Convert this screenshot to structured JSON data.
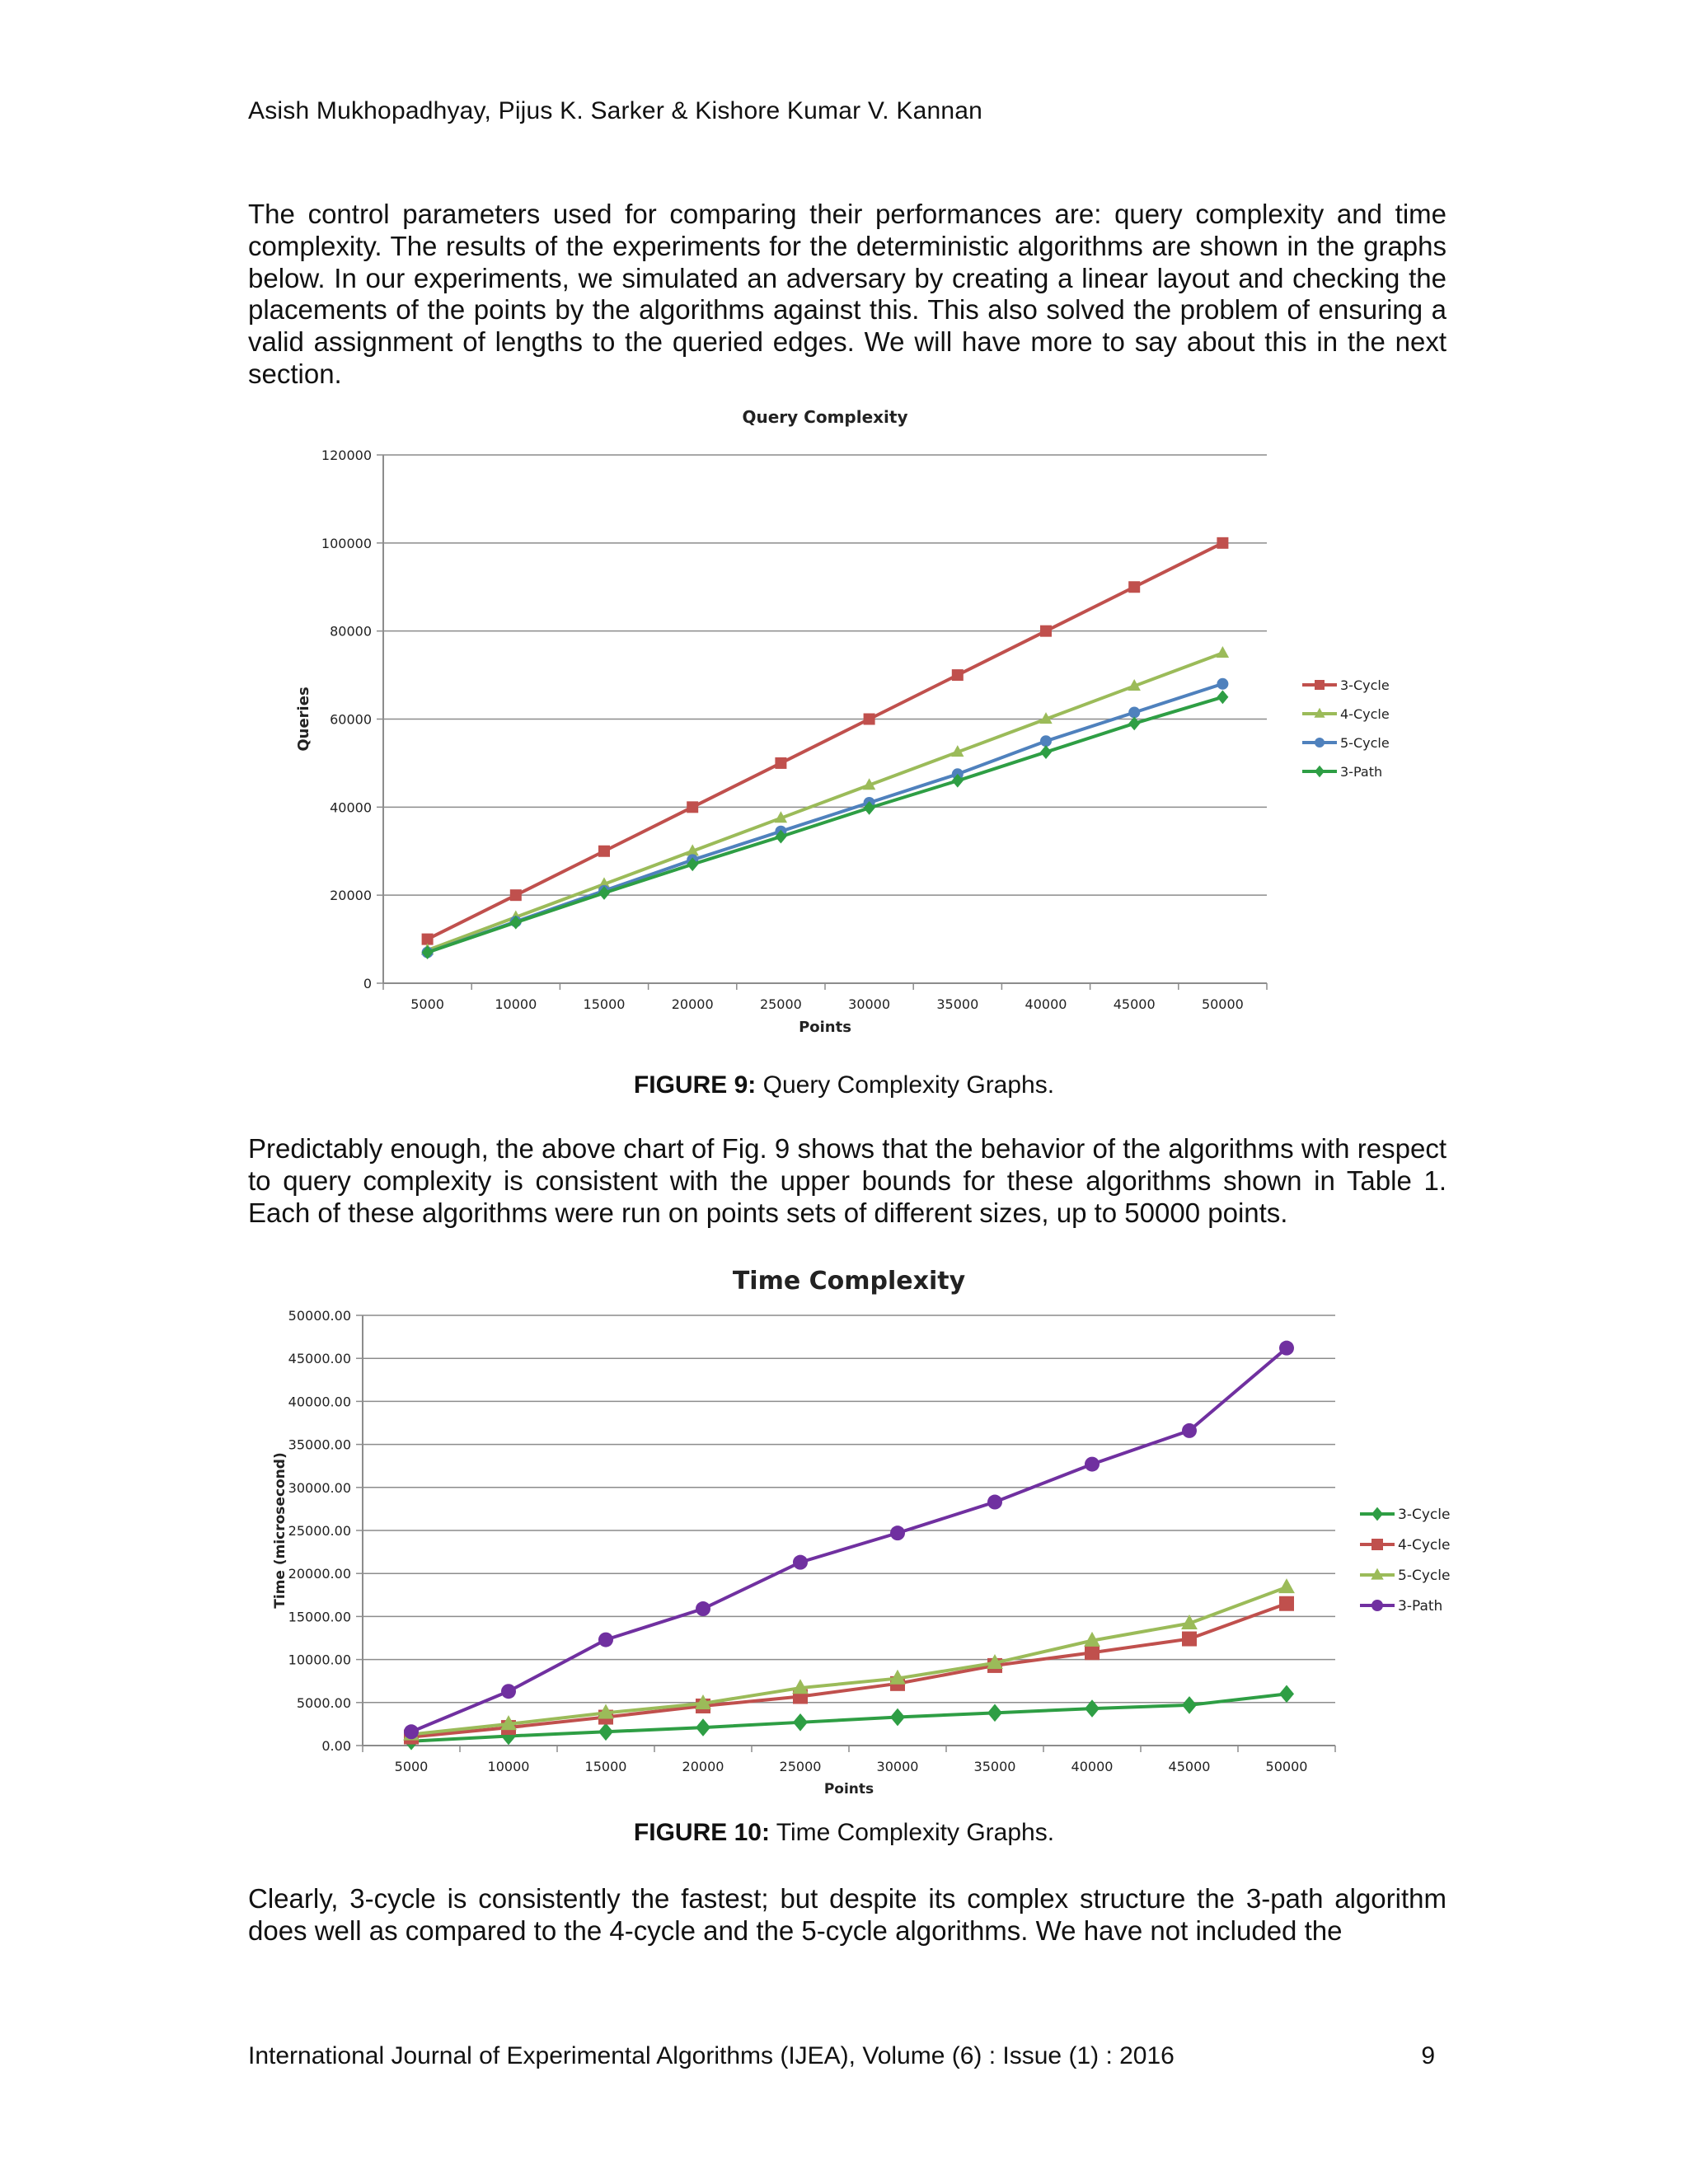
{
  "header": {
    "authors": "Asish Mukhopadhyay, Pijus K. Sarker & Kishore Kumar V. Kannan"
  },
  "paragraphs": {
    "p1": "The control parameters used for comparing their performances are: query complexity and time complexity. The results of the experiments for the deterministic algorithms are shown in the graphs below. In our experiments, we simulated an adversary by creating a linear layout and checking the placements of the points by the algorithms against this. This also solved the problem of ensuring a valid assignment of lengths to the queried edges. We will have more to say about this in the next section.",
    "p2": "Predictably enough, the above chart of Fig. 9 shows that the behavior of the algorithms with respect to query complexity is consistent with the upper bounds for these algorithms shown in Table 1. Each of these algorithms were run on points sets of different sizes, up to 50000 points.",
    "p3": "Clearly, 3-cycle is consistently the fastest; but despite its complex structure the 3-path algorithm does well as compared to the 4-cycle and the 5-cycle algorithms. We have not included the"
  },
  "captions": {
    "fig9_label": "FIGURE 9:",
    "fig9_text": " Query Complexity Graphs.",
    "fig10_label": "FIGURE 10:",
    "fig10_text": " Time Complexity Graphs."
  },
  "footer": {
    "journal": "International Journal of Experimental Algorithms (IJEA), Volume (6) : Issue (1) : 2016",
    "page_number": "9"
  },
  "chart_data": [
    {
      "type": "line",
      "title": "Query Complexity",
      "xlabel": "Points",
      "ylabel": "Queries",
      "categories": [
        "5000",
        "10000",
        "15000",
        "20000",
        "25000",
        "30000",
        "35000",
        "40000",
        "45000",
        "50000"
      ],
      "ylim": [
        0,
        120000
      ],
      "yticks": [
        "0",
        "20000",
        "40000",
        "60000",
        "80000",
        "100000",
        "120000"
      ],
      "grid": true,
      "legend": "right",
      "series": [
        {
          "name": "3-Cycle",
          "color": "#c0504d",
          "marker": "square",
          "values": [
            10000,
            20000,
            30000,
            40000,
            50000,
            60000,
            70000,
            80000,
            90000,
            100000
          ]
        },
        {
          "name": "4-Cycle",
          "color": "#9bbb59",
          "marker": "triangle",
          "values": [
            7500,
            15000,
            22500,
            30000,
            37500,
            45000,
            52500,
            60000,
            67500,
            75000
          ]
        },
        {
          "name": "5-Cycle",
          "color": "#4f81bd",
          "marker": "circle",
          "values": [
            7000,
            14000,
            21000,
            28000,
            34500,
            41000,
            47500,
            55000,
            61500,
            68000
          ]
        },
        {
          "name": "3-Path",
          "color": "#2e9e44",
          "marker": "diamond",
          "values": [
            7000,
            13800,
            20500,
            27000,
            33300,
            39800,
            46000,
            52500,
            59000,
            65000
          ]
        }
      ]
    },
    {
      "type": "line",
      "title": "Time Complexity",
      "xlabel": "Points",
      "ylabel": "Time (microsecond)",
      "categories": [
        "5000",
        "10000",
        "15000",
        "20000",
        "25000",
        "30000",
        "35000",
        "40000",
        "45000",
        "50000"
      ],
      "ylim": [
        0,
        50000
      ],
      "yticks": [
        "0.00",
        "5000.00",
        "10000.00",
        "15000.00",
        "20000.00",
        "25000.00",
        "30000.00",
        "35000.00",
        "40000.00",
        "45000.00",
        "50000.00"
      ],
      "grid": true,
      "legend": "right",
      "series": [
        {
          "name": "3-Cycle",
          "color": "#2e9e44",
          "marker": "diamond",
          "values": [
            500,
            1100,
            1600,
            2100,
            2700,
            3300,
            3800,
            4300,
            4700,
            6000
          ]
        },
        {
          "name": "4-Cycle",
          "color": "#c0504d",
          "marker": "square",
          "values": [
            1000,
            2100,
            3300,
            4600,
            5700,
            7200,
            9300,
            10800,
            12400,
            16500
          ]
        },
        {
          "name": "5-Cycle",
          "color": "#9bbb59",
          "marker": "triangle",
          "values": [
            1300,
            2500,
            3800,
            4900,
            6700,
            7800,
            9600,
            12200,
            14200,
            18400
          ]
        },
        {
          "name": "3-Path",
          "color": "#7030a0",
          "marker": "circle",
          "values": [
            1600,
            6300,
            12300,
            15900,
            21300,
            24700,
            28300,
            32700,
            36600,
            46200
          ]
        }
      ]
    }
  ]
}
